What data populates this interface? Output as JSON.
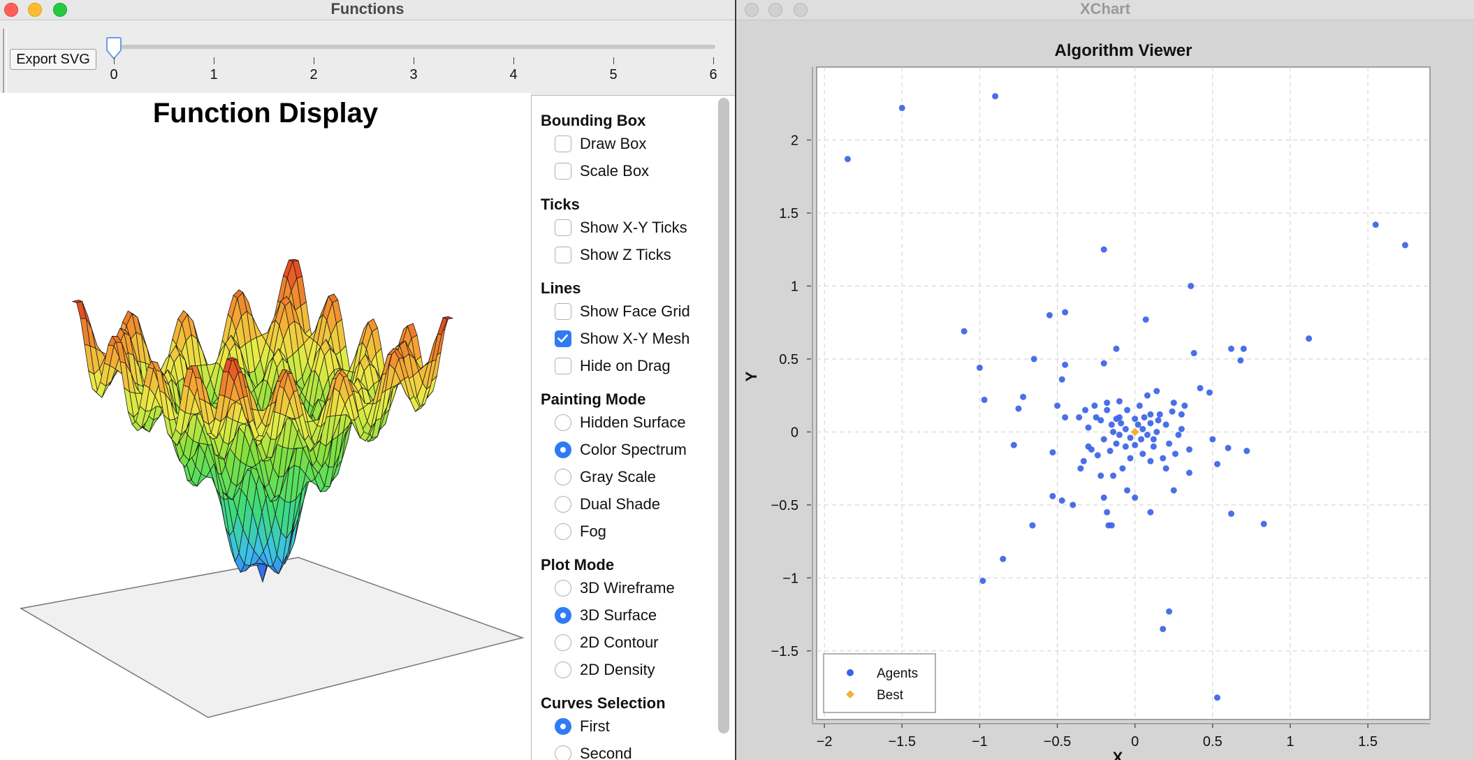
{
  "left_window": {
    "title": "Functions",
    "export_button": "Export SVG",
    "slider": {
      "value": 0,
      "min": 0,
      "max": 6,
      "ticks": [
        "0",
        "1",
        "2",
        "3",
        "4",
        "5",
        "6"
      ]
    },
    "plot_title": "Function Display"
  },
  "settings": {
    "sections": [
      {
        "title": "Bounding Box",
        "type": "checkbox",
        "options": [
          {
            "label": "Draw Box",
            "checked": false
          },
          {
            "label": "Scale Box",
            "checked": false
          }
        ]
      },
      {
        "title": "Ticks",
        "type": "checkbox",
        "options": [
          {
            "label": "Show X-Y Ticks",
            "checked": false
          },
          {
            "label": "Show Z Ticks",
            "checked": false
          }
        ]
      },
      {
        "title": "Lines",
        "type": "checkbox",
        "options": [
          {
            "label": "Show Face Grid",
            "checked": false
          },
          {
            "label": "Show X-Y Mesh",
            "checked": true
          },
          {
            "label": "Hide on Drag",
            "checked": false
          }
        ]
      },
      {
        "title": "Painting Mode",
        "type": "radio",
        "options": [
          {
            "label": "Hidden Surface",
            "checked": false
          },
          {
            "label": "Color Spectrum",
            "checked": true
          },
          {
            "label": "Gray Scale",
            "checked": false
          },
          {
            "label": "Dual Shade",
            "checked": false
          },
          {
            "label": "Fog",
            "checked": false
          }
        ]
      },
      {
        "title": "Plot Mode",
        "type": "radio",
        "options": [
          {
            "label": "3D Wireframe",
            "checked": false
          },
          {
            "label": "3D Surface",
            "checked": true
          },
          {
            "label": "2D Contour",
            "checked": false
          },
          {
            "label": "2D Density",
            "checked": false
          }
        ]
      },
      {
        "title": "Curves Selection",
        "type": "radio",
        "options": [
          {
            "label": "First",
            "checked": true
          },
          {
            "label": "Second",
            "checked": false
          }
        ]
      }
    ]
  },
  "right_window": {
    "title": "XChart"
  },
  "colors": {
    "agents": "#3b63e6",
    "best": "#f0b23a",
    "accent": "#2f7bf5"
  },
  "chart_data": {
    "type": "scatter",
    "title": "Algorithm Viewer",
    "xlabel": "X",
    "ylabel": "Y",
    "xlim": [
      -2.05,
      1.9
    ],
    "ylim": [
      -1.97,
      2.5
    ],
    "xticks": [
      -2,
      -1.5,
      -1,
      -0.5,
      0,
      0.5,
      1,
      1.5
    ],
    "yticks": [
      -1.5,
      -1,
      -0.5,
      0,
      0.5,
      1,
      1.5,
      2
    ],
    "grid": true,
    "legend_position": "bottom-left",
    "series": [
      {
        "name": "Agents",
        "marker": "circle",
        "points": [
          [
            -1.85,
            1.87
          ],
          [
            -1.5,
            2.22
          ],
          [
            -0.9,
            2.3
          ],
          [
            1.55,
            1.42
          ],
          [
            1.74,
            1.28
          ],
          [
            -0.2,
            1.25
          ],
          [
            0.36,
            1.0
          ],
          [
            -0.45,
            0.82
          ],
          [
            -0.55,
            0.8
          ],
          [
            0.07,
            0.77
          ],
          [
            -1.1,
            0.69
          ],
          [
            1.12,
            0.64
          ],
          [
            0.62,
            0.57
          ],
          [
            0.7,
            0.57
          ],
          [
            0.68,
            0.49
          ],
          [
            -0.12,
            0.57
          ],
          [
            -0.65,
            0.5
          ],
          [
            0.38,
            0.54
          ],
          [
            -1.0,
            0.44
          ],
          [
            -0.2,
            0.47
          ],
          [
            -0.45,
            0.46
          ],
          [
            -0.47,
            0.36
          ],
          [
            0.42,
            0.3
          ],
          [
            0.48,
            0.27
          ],
          [
            -0.97,
            0.22
          ],
          [
            -0.72,
            0.24
          ],
          [
            -0.75,
            0.16
          ],
          [
            -0.5,
            0.18
          ],
          [
            -0.45,
            0.1
          ],
          [
            -0.32,
            0.15
          ],
          [
            -0.18,
            0.2
          ],
          [
            0.25,
            0.2
          ],
          [
            0.3,
            0.12
          ],
          [
            -0.78,
            -0.09
          ],
          [
            -0.53,
            -0.14
          ],
          [
            -0.3,
            -0.1
          ],
          [
            -0.35,
            -0.25
          ],
          [
            0.5,
            -0.05
          ],
          [
            0.53,
            -0.22
          ],
          [
            0.6,
            -0.11
          ],
          [
            0.72,
            -0.13
          ],
          [
            -0.53,
            -0.44
          ],
          [
            -0.47,
            -0.47
          ],
          [
            -0.4,
            -0.5
          ],
          [
            -0.2,
            -0.45
          ],
          [
            -0.18,
            -0.55
          ],
          [
            -0.17,
            -0.64
          ],
          [
            -0.15,
            -0.64
          ],
          [
            -0.05,
            -0.4
          ],
          [
            0.0,
            -0.45
          ],
          [
            0.1,
            -0.55
          ],
          [
            0.25,
            -0.4
          ],
          [
            0.35,
            -0.28
          ],
          [
            -0.22,
            -0.3
          ],
          [
            0.2,
            -0.25
          ],
          [
            0.62,
            -0.56
          ],
          [
            0.83,
            -0.63
          ],
          [
            -0.66,
            -0.64
          ],
          [
            -0.85,
            -0.87
          ],
          [
            -0.98,
            -1.02
          ],
          [
            0.22,
            -1.23
          ],
          [
            0.18,
            -1.35
          ],
          [
            0.53,
            -1.82
          ],
          [
            -0.1,
            0.1
          ],
          [
            0.1,
            0.12
          ],
          [
            0.15,
            0.08
          ],
          [
            -0.15,
            0.05
          ],
          [
            -0.12,
            -0.08
          ],
          [
            0.12,
            -0.1
          ],
          [
            -0.05,
            0.15
          ],
          [
            0.05,
            -0.15
          ],
          [
            0.2,
            0.05
          ],
          [
            -0.2,
            -0.05
          ],
          [
            0.18,
            -0.18
          ],
          [
            -0.18,
            0.15
          ],
          [
            -0.25,
            0.1
          ],
          [
            0.28,
            -0.02
          ],
          [
            -0.28,
            -0.12
          ],
          [
            0.08,
            0.25
          ],
          [
            -0.08,
            -0.25
          ],
          [
            0.02,
            0.05
          ],
          [
            -0.03,
            -0.04
          ],
          [
            0.05,
            0.02
          ],
          [
            -0.06,
            0.02
          ],
          [
            0.04,
            -0.05
          ],
          [
            0.08,
            -0.02
          ],
          [
            -0.09,
            0.06
          ],
          [
            0.1,
            0.06
          ],
          [
            -0.1,
            -0.02
          ],
          [
            0.0,
            0.09
          ],
          [
            0.0,
            -0.09
          ],
          [
            0.14,
            0.0
          ],
          [
            -0.14,
            0.0
          ],
          [
            0.06,
            0.1
          ],
          [
            -0.06,
            -0.1
          ],
          [
            0.12,
            -0.05
          ],
          [
            -0.12,
            0.09
          ],
          [
            0.16,
            0.12
          ],
          [
            -0.16,
            -0.13
          ],
          [
            0.22,
            -0.08
          ],
          [
            -0.22,
            0.08
          ],
          [
            0.03,
            0.18
          ],
          [
            -0.03,
            -0.18
          ],
          [
            0.24,
            0.14
          ],
          [
            -0.24,
            -0.16
          ],
          [
            0.3,
            0.02
          ],
          [
            -0.3,
            0.03
          ],
          [
            0.1,
            -0.2
          ],
          [
            -0.1,
            0.21
          ],
          [
            0.26,
            -0.15
          ],
          [
            -0.26,
            0.18
          ],
          [
            0.32,
            0.18
          ],
          [
            -0.33,
            -0.2
          ],
          [
            0.14,
            0.28
          ],
          [
            -0.14,
            -0.3
          ],
          [
            0.35,
            -0.12
          ],
          [
            -0.36,
            0.1
          ]
        ]
      },
      {
        "name": "Best",
        "marker": "diamond",
        "points": [
          [
            0.0,
            0.0
          ]
        ]
      }
    ]
  }
}
